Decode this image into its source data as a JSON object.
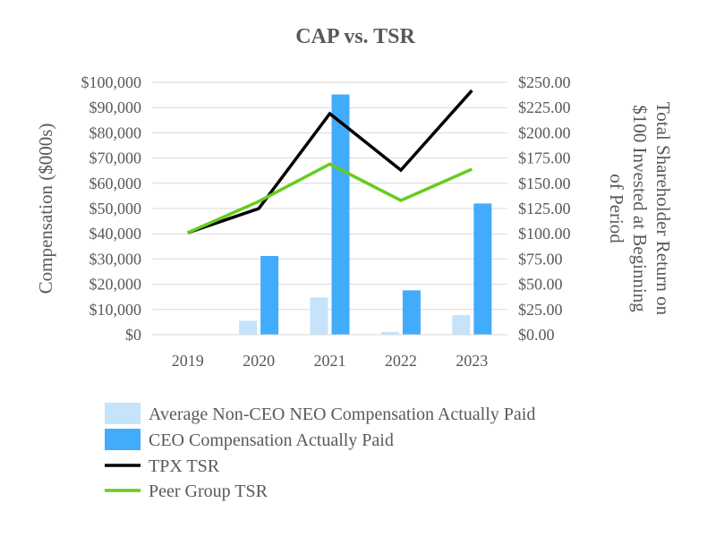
{
  "chart_data": {
    "type": "bar",
    "title": "CAP vs. TSR",
    "categories": [
      "2019",
      "2020",
      "2021",
      "2022",
      "2023"
    ],
    "ylabel": "Compensation ($000s)",
    "ylabel_right": [
      "Total Shareholder Return on",
      "$100 Invested at Beginning",
      "of Period"
    ],
    "ylim": [
      0,
      100000
    ],
    "ylim_right": [
      0,
      250
    ],
    "y_ticks": [
      "$0",
      "$10,000",
      "$20,000",
      "$30,000",
      "$40,000",
      "$50,000",
      "$60,000",
      "$70,000",
      "$80,000",
      "$90,000",
      "$100,000"
    ],
    "y_ticks_right": [
      "$0.00",
      "$25.00",
      "$50.00",
      "$75.00",
      "$100.00",
      "$125.00",
      "$150.00",
      "$175.00",
      "$200.00",
      "$225.00",
      "$250.00"
    ],
    "grid": true,
    "legend_position": "bottom",
    "series": [
      {
        "name": "Average Non-CEO NEO Compensation Actually Paid",
        "kind": "bar",
        "axis": "left",
        "color": "#c5e3fb",
        "values": [
          0,
          5500,
          14800,
          1100,
          7800
        ]
      },
      {
        "name": "CEO Compensation Actually Paid",
        "kind": "bar",
        "axis": "left",
        "color": "#42acfc",
        "values": [
          0,
          31200,
          95200,
          17600,
          52000
        ]
      },
      {
        "name": "TPX TSR",
        "kind": "line",
        "axis": "right",
        "color": "#000000",
        "values": [
          101,
          125,
          219,
          163,
          242
        ]
      },
      {
        "name": "Peer Group TSR",
        "kind": "line",
        "axis": "right",
        "color": "#66cc1e",
        "values": [
          101,
          132,
          169,
          133,
          164
        ]
      }
    ]
  }
}
